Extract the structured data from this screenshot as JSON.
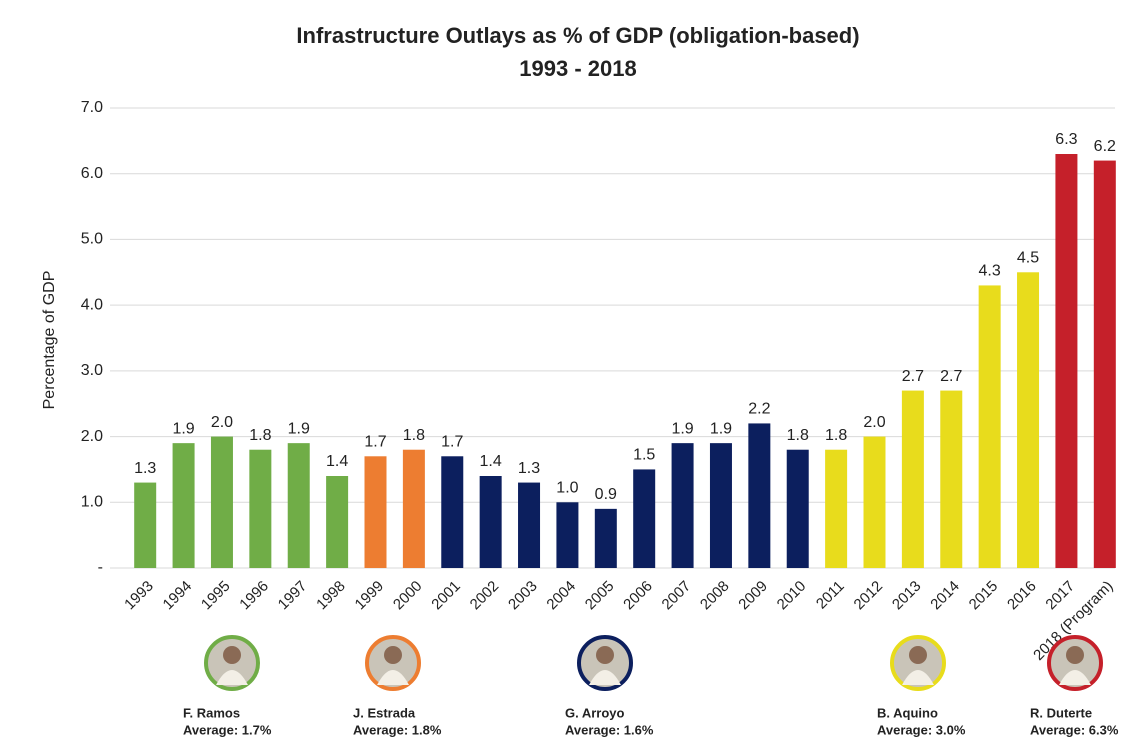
{
  "chart_data": {
    "type": "bar",
    "title": "Infrastructure  Outlays as % of GDP (obligation-based)",
    "subtitle": "1993 - 2018",
    "y_label": "Percentage of GDP",
    "categories": [
      "1993",
      "1994",
      "1995",
      "1996",
      "1997",
      "1998",
      "1999",
      "2000",
      "2001",
      "2002",
      "2003",
      "2004",
      "2005",
      "2006",
      "2007",
      "2008",
      "2009",
      "2010",
      "2011",
      "2012",
      "2013",
      "2014",
      "2015",
      "2016",
      "2017",
      "2018 (Program)"
    ],
    "values": [
      1.3,
      1.9,
      2.0,
      1.8,
      1.9,
      1.4,
      1.7,
      1.8,
      1.7,
      1.4,
      1.3,
      1.0,
      0.9,
      1.5,
      1.9,
      1.9,
      2.2,
      1.8,
      1.8,
      2.0,
      2.7,
      2.7,
      4.3,
      4.5,
      6.3,
      6.2
    ],
    "value_labels": [
      "1.3",
      "1.9",
      "2.0",
      "1.8",
      "1.9",
      "1.4",
      "1.7",
      "1.8",
      "1.7",
      "1.4",
      "1.3",
      "1.0",
      "0.9",
      "1.5",
      "1.9",
      "1.9",
      "2.2",
      "1.8",
      "1.8",
      "2.0",
      "2.7",
      "2.7",
      "4.3",
      "4.5",
      "6.3",
      "6.2"
    ],
    "colors": [
      "#70ad47",
      "#70ad47",
      "#70ad47",
      "#70ad47",
      "#70ad47",
      "#70ad47",
      "#ed7d31",
      "#ed7d31",
      "#0c1f5e",
      "#0c1f5e",
      "#0c1f5e",
      "#0c1f5e",
      "#0c1f5e",
      "#0c1f5e",
      "#0c1f5e",
      "#0c1f5e",
      "#0c1f5e",
      "#0c1f5e",
      "#e8dc1c",
      "#e8dc1c",
      "#e8dc1c",
      "#e8dc1c",
      "#e8dc1c",
      "#e8dc1c",
      "#c5202a",
      "#c5202a"
    ],
    "ylim": [
      0,
      7
    ],
    "yticks": [
      {
        "value": 0,
        "label": "-"
      },
      {
        "value": 1,
        "label": "1.0"
      },
      {
        "value": 2,
        "label": "2.0"
      },
      {
        "value": 3,
        "label": "3.0"
      },
      {
        "value": 4,
        "label": "4.0"
      },
      {
        "value": 5,
        "label": "5.0"
      },
      {
        "value": 6,
        "label": "6.0"
      },
      {
        "value": 7,
        "label": "7.0"
      }
    ],
    "grid": true,
    "presidents": [
      {
        "name": "F. Ramos",
        "average": "Average: 1.7%",
        "color": "#70ad47"
      },
      {
        "name": "J. Estrada",
        "average": "Average: 1.8%",
        "color": "#ed7d31"
      },
      {
        "name": "G. Arroyo",
        "average": "Average: 1.6%",
        "color": "#0c1f5e"
      },
      {
        "name": "B. Aquino",
        "average": "Average: 3.0%",
        "color": "#e8dc1c"
      },
      {
        "name": "R. Duterte",
        "average": "Average: 6.3%",
        "color": "#c5202a"
      }
    ]
  }
}
